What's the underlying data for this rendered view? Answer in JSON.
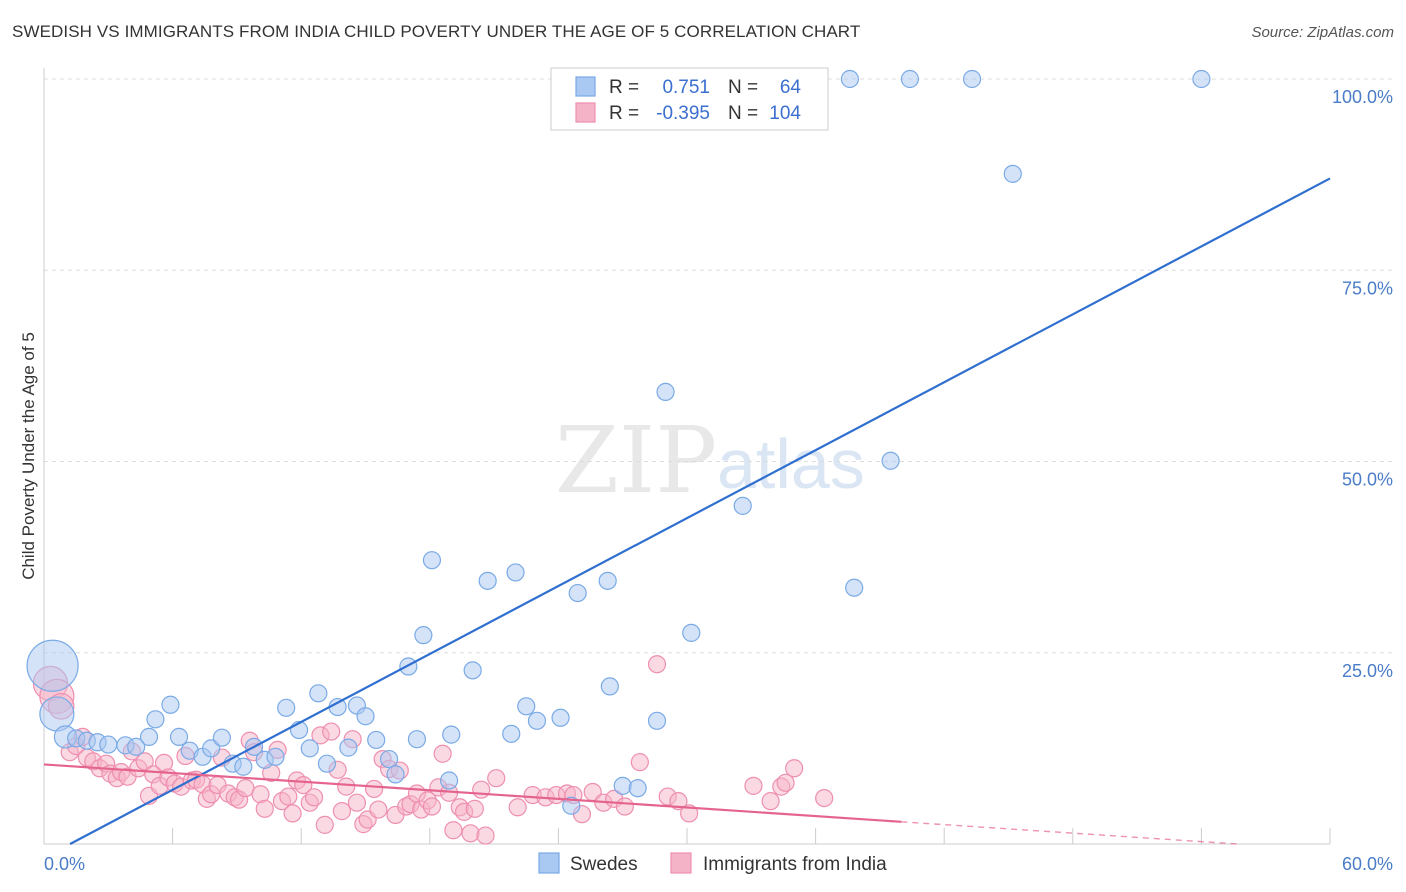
{
  "title": "SWEDISH VS IMMIGRANTS FROM INDIA CHILD POVERTY UNDER THE AGE OF 5 CORRELATION CHART",
  "source": "Source: ZipAtlas.com",
  "watermark": {
    "zip": "ZIP",
    "atlas": "atlas"
  },
  "colors": {
    "blue_fill": "#a9c8f2",
    "blue_stroke": "#7aaae6",
    "blue_line": "#2f6fd0",
    "pink_fill": "#f5b3c8",
    "pink_stroke": "#ee8fb0",
    "pink_line": "#e5648e",
    "grid": "#dddddd",
    "tick": "#4a7cc7"
  },
  "legend": {
    "r_label": "R =",
    "n_label": "N =",
    "rows": [
      {
        "r": "0.751",
        "n": "64"
      },
      {
        "r": "-0.395",
        "n": "104"
      }
    ]
  },
  "bottom_legend": [
    "Swedes",
    "Immigrants from India"
  ],
  "chart_data": {
    "type": "scatter",
    "title": "SWEDISH VS IMMIGRANTS FROM INDIA CHILD POVERTY UNDER THE AGE OF 5 CORRELATION CHART",
    "xlabel": "",
    "ylabel": "Child Poverty Under the Age of 5",
    "xlim": [
      0,
      60
    ],
    "ylim": [
      0,
      100
    ],
    "x_tick_labels": [
      "0.0%",
      "60.0%"
    ],
    "y_ticks": [
      25,
      50,
      75,
      100
    ],
    "y_tick_labels": [
      "25.0%",
      "50.0%",
      "75.0%",
      "100.0%"
    ],
    "grid": true,
    "legend_position": "top-center",
    "series": [
      {
        "name": "Swedes",
        "r": 0.751,
        "n": 64,
        "trend": {
          "x0": 0,
          "y0": -1.8,
          "x1": 60,
          "y1": 87
        },
        "points": [
          [
            0.4,
            23.3,
            3
          ],
          [
            0.6,
            17,
            2
          ],
          [
            1.0,
            14,
            1.3
          ],
          [
            1.5,
            13.8,
            1
          ],
          [
            2,
            13.5,
            1
          ],
          [
            2.5,
            13.3,
            1
          ],
          [
            3.0,
            13,
            1
          ],
          [
            3.8,
            12.9,
            1
          ],
          [
            4.3,
            12.7,
            1
          ],
          [
            4.9,
            14,
            1
          ],
          [
            5.2,
            16.3,
            1
          ],
          [
            5.9,
            18.2,
            1
          ],
          [
            6.3,
            14,
            1
          ],
          [
            6.8,
            12.2,
            1
          ],
          [
            7.4,
            11.4,
            1
          ],
          [
            7.8,
            12.5,
            1
          ],
          [
            8.3,
            13.9,
            1
          ],
          [
            8.8,
            10.5,
            1
          ],
          [
            9.3,
            10.1,
            1
          ],
          [
            9.8,
            12.7,
            1
          ],
          [
            10.3,
            11,
            1
          ],
          [
            10.8,
            11.4,
            1
          ],
          [
            11.3,
            17.8,
            1
          ],
          [
            11.9,
            14.9,
            1
          ],
          [
            12.4,
            12.5,
            1
          ],
          [
            12.8,
            19.7,
            1
          ],
          [
            13.2,
            10.5,
            1
          ],
          [
            13.7,
            17.9,
            1
          ],
          [
            14.2,
            12.6,
            1
          ],
          [
            14.6,
            18.1,
            1
          ],
          [
            15.0,
            16.7,
            1
          ],
          [
            15.5,
            13.6,
            1
          ],
          [
            16.1,
            11.1,
            1
          ],
          [
            16.4,
            9.1,
            1
          ],
          [
            17.0,
            23.2,
            1
          ],
          [
            17.4,
            13.7,
            1
          ],
          [
            17.7,
            27.3,
            1
          ],
          [
            18.9,
            8.3,
            1
          ],
          [
            18.1,
            37.1,
            1
          ],
          [
            19.0,
            14.3,
            1
          ],
          [
            20.0,
            22.7,
            1
          ],
          [
            20.7,
            34.4,
            1
          ],
          [
            21.8,
            14.4,
            1
          ],
          [
            22.5,
            18,
            1
          ],
          [
            22.0,
            35.5,
            1
          ],
          [
            23.0,
            16.1,
            1
          ],
          [
            24.1,
            16.5,
            1
          ],
          [
            24.6,
            5.0,
            1
          ],
          [
            24.9,
            32.8,
            1
          ],
          [
            26.4,
            20.6,
            1
          ],
          [
            26.3,
            34.4,
            1
          ],
          [
            27.0,
            7.6,
            1
          ],
          [
            27.7,
            7.3,
            1
          ],
          [
            28.6,
            16.1,
            1
          ],
          [
            29.0,
            59.1,
            1
          ],
          [
            30.2,
            27.6,
            1
          ],
          [
            32.6,
            44.2,
            1
          ],
          [
            37.6,
            100,
            1
          ],
          [
            39.5,
            50.1,
            1
          ],
          [
            37.8,
            33.5,
            1
          ],
          [
            40.4,
            100,
            1
          ],
          [
            43.3,
            100,
            1
          ],
          [
            45.2,
            87.6,
            1
          ],
          [
            54.0,
            100,
            1
          ]
        ]
      },
      {
        "name": "Immigrants from India",
        "r": -0.395,
        "n": 104,
        "trend": {
          "x0": 0,
          "y0": 10.4,
          "x1": 40,
          "y1": 2.9
        },
        "trend_dashed": {
          "x0": 40,
          "y0": 2.9,
          "x1": 60,
          "y1": -0.8
        },
        "points": [
          [
            0.3,
            21,
            2
          ],
          [
            0.6,
            19.3,
            2
          ],
          [
            0.8,
            18,
            1.5
          ],
          [
            1.2,
            12,
            1
          ],
          [
            1.5,
            12.8,
            1
          ],
          [
            1.8,
            14,
            1
          ],
          [
            2,
            11.3,
            1
          ],
          [
            2.3,
            10.8,
            1
          ],
          [
            2.6,
            9.9,
            1
          ],
          [
            2.9,
            10.5,
            1
          ],
          [
            3.1,
            9.2,
            1
          ],
          [
            3.4,
            8.6,
            1
          ],
          [
            3.6,
            9.4,
            1
          ],
          [
            3.9,
            8.8,
            1
          ],
          [
            4.1,
            12.1,
            1
          ],
          [
            4.4,
            9.9,
            1
          ],
          [
            4.7,
            10.8,
            1
          ],
          [
            4.9,
            6.3,
            1
          ],
          [
            5.1,
            9.1,
            1
          ],
          [
            5.4,
            7.6,
            1
          ],
          [
            5.6,
            10.6,
            1
          ],
          [
            5.8,
            8.7,
            1
          ],
          [
            6.1,
            7.9,
            1
          ],
          [
            6.4,
            7.5,
            1
          ],
          [
            6.6,
            11.5,
            1
          ],
          [
            6.9,
            8.3,
            1
          ],
          [
            7.1,
            8.4,
            1
          ],
          [
            7.4,
            7.8,
            1
          ],
          [
            7.6,
            5.9,
            1
          ],
          [
            7.8,
            6.5,
            1
          ],
          [
            8.1,
            7.7,
            1
          ],
          [
            8.3,
            11.3,
            1
          ],
          [
            8.6,
            6.6,
            1
          ],
          [
            8.9,
            6.1,
            1
          ],
          [
            9.1,
            5.8,
            1
          ],
          [
            9.4,
            7.3,
            1
          ],
          [
            9.6,
            13.5,
            1
          ],
          [
            9.8,
            12,
            1
          ],
          [
            10.1,
            6.5,
            1
          ],
          [
            10.3,
            4.6,
            1
          ],
          [
            10.6,
            9.3,
            1
          ],
          [
            10.9,
            12.3,
            1
          ],
          [
            11.1,
            5.6,
            1
          ],
          [
            11.4,
            6.2,
            1
          ],
          [
            11.6,
            4,
            1
          ],
          [
            11.8,
            8.3,
            1
          ],
          [
            12.1,
            7.7,
            1
          ],
          [
            12.4,
            5.4,
            1
          ],
          [
            12.6,
            6.1,
            1
          ],
          [
            12.9,
            14.2,
            1
          ],
          [
            13.1,
            2.5,
            1
          ],
          [
            13.4,
            14.7,
            1
          ],
          [
            13.7,
            9.7,
            1
          ],
          [
            13.9,
            4.3,
            1
          ],
          [
            14.1,
            7.5,
            1
          ],
          [
            14.4,
            13.7,
            1
          ],
          [
            14.6,
            5.4,
            1
          ],
          [
            14.9,
            2.6,
            1
          ],
          [
            15.1,
            3.2,
            1
          ],
          [
            15.4,
            7.2,
            1
          ],
          [
            15.6,
            4.5,
            1
          ],
          [
            15.8,
            11.1,
            1
          ],
          [
            16.1,
            9.8,
            1
          ],
          [
            16.4,
            3.8,
            1
          ],
          [
            16.6,
            9.6,
            1
          ],
          [
            16.9,
            4.9,
            1
          ],
          [
            17.1,
            5.2,
            1
          ],
          [
            17.4,
            6.6,
            1
          ],
          [
            17.6,
            4.5,
            1
          ],
          [
            17.9,
            5.7,
            1
          ],
          [
            18.1,
            4.9,
            1
          ],
          [
            18.4,
            7.4,
            1
          ],
          [
            18.6,
            11.8,
            1
          ],
          [
            18.9,
            6.7,
            1
          ],
          [
            19.1,
            1.8,
            1
          ],
          [
            19.4,
            4.8,
            1
          ],
          [
            19.6,
            4.2,
            1
          ],
          [
            19.9,
            1.4,
            1
          ],
          [
            20.1,
            4.6,
            1
          ],
          [
            20.4,
            7.1,
            1
          ],
          [
            20.6,
            1.1,
            1
          ],
          [
            21.1,
            8.6,
            1
          ],
          [
            22.1,
            4.8,
            1
          ],
          [
            22.8,
            6.4,
            1
          ],
          [
            23.4,
            6.1,
            1
          ],
          [
            23.9,
            6.4,
            1
          ],
          [
            24.4,
            6.6,
            1
          ],
          [
            24.7,
            6.4,
            1
          ],
          [
            25.1,
            3.9,
            1
          ],
          [
            25.6,
            6.8,
            1
          ],
          [
            26.1,
            5.4,
            1
          ],
          [
            26.6,
            5.9,
            1
          ],
          [
            27.1,
            4.9,
            1
          ],
          [
            27.8,
            10.7,
            1
          ],
          [
            28.6,
            23.5,
            1
          ],
          [
            29.1,
            6.2,
            1
          ],
          [
            29.6,
            5.6,
            1
          ],
          [
            30.1,
            4.0,
            1
          ],
          [
            33.1,
            7.6,
            1
          ],
          [
            33.9,
            5.6,
            1
          ],
          [
            34.4,
            7.5,
            1
          ],
          [
            34.6,
            8.0,
            1
          ],
          [
            35.0,
            9.9,
            1
          ],
          [
            36.4,
            6.0,
            1
          ]
        ]
      }
    ]
  }
}
